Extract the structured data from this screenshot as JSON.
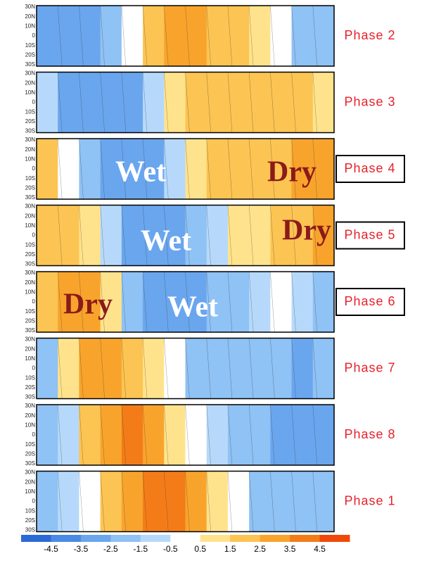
{
  "lat_labels": [
    "30N",
    "20N",
    "10N",
    "0",
    "10S",
    "20S",
    "30S"
  ],
  "panels": [
    {
      "label": "Phase 2",
      "boxed": false,
      "profile": [
        -3,
        -3,
        -2.5,
        -1.5,
        0,
        2,
        3,
        3,
        2.5,
        2,
        1,
        0,
        -1.5,
        -1.5
      ],
      "overlays": []
    },
    {
      "label": "Phase 3",
      "boxed": false,
      "profile": [
        -0.5,
        -2.5,
        -3,
        -3,
        -2.5,
        -1,
        1,
        2,
        2.5,
        2.5,
        2.5,
        2.5,
        2,
        1
      ],
      "overlays": []
    },
    {
      "label": "Phase 4",
      "boxed": true,
      "profile": [
        2,
        0,
        -2,
        -3,
        -3,
        -2.5,
        -1,
        1.5,
        2,
        2,
        2,
        2.5,
        3,
        3
      ],
      "overlays": [
        {
          "text": "Wet",
          "color": "#ffffff"
        },
        {
          "text": "Dry",
          "color": "#8b1a1a"
        }
      ]
    },
    {
      "label": "Phase 5",
      "boxed": true,
      "profile": [
        2,
        2,
        1,
        -1,
        -3,
        -3,
        -3,
        -2,
        -0.5,
        1,
        1.5,
        2,
        2.5,
        3
      ],
      "overlays": [
        {
          "text": "Wet",
          "color": "#ffffff"
        },
        {
          "text": "Dry",
          "color": "#8b1a1a"
        }
      ]
    },
    {
      "label": "Phase 6",
      "boxed": true,
      "profile": [
        2,
        3,
        3.5,
        1,
        -1.5,
        -2.5,
        -2.5,
        -2.5,
        -2,
        -1.5,
        -1,
        0,
        -1,
        -1.5
      ],
      "overlays": [
        {
          "text": "Dry",
          "color": "#8b1a1a"
        },
        {
          "text": "Wet",
          "color": "#ffffff"
        }
      ]
    },
    {
      "label": "Phase 7",
      "boxed": false,
      "profile": [
        -1.5,
        1,
        3,
        3.5,
        2,
        1,
        0,
        -1.5,
        -2,
        -2,
        -2,
        -2,
        -2.5,
        -2
      ],
      "overlays": []
    },
    {
      "label": "Phase 8",
      "boxed": false,
      "profile": [
        -2,
        -1,
        2,
        3.5,
        4,
        3,
        1.5,
        0,
        -1,
        -2,
        -2,
        -2.5,
        -2.5,
        -2.5
      ],
      "overlays": []
    },
    {
      "label": "Phase 1",
      "boxed": false,
      "profile": [
        -2,
        -1,
        0,
        2,
        3.5,
        4,
        4,
        3,
        1,
        0,
        -1.5,
        -2,
        -2,
        -2
      ],
      "overlays": []
    }
  ],
  "colorbar": {
    "colors": [
      "#2a6ad6",
      "#4a8ae4",
      "#6aa6ee",
      "#8fc2f5",
      "#b6d9fb",
      "#ffffff",
      "#ffe38c",
      "#fcc452",
      "#f8a42c",
      "#f47c18",
      "#f04808"
    ],
    "ticks": [
      -4.5,
      -3.5,
      -2.5,
      -1.5,
      -0.5,
      0.5,
      1.5,
      2.5,
      3.5,
      4.5
    ]
  }
}
